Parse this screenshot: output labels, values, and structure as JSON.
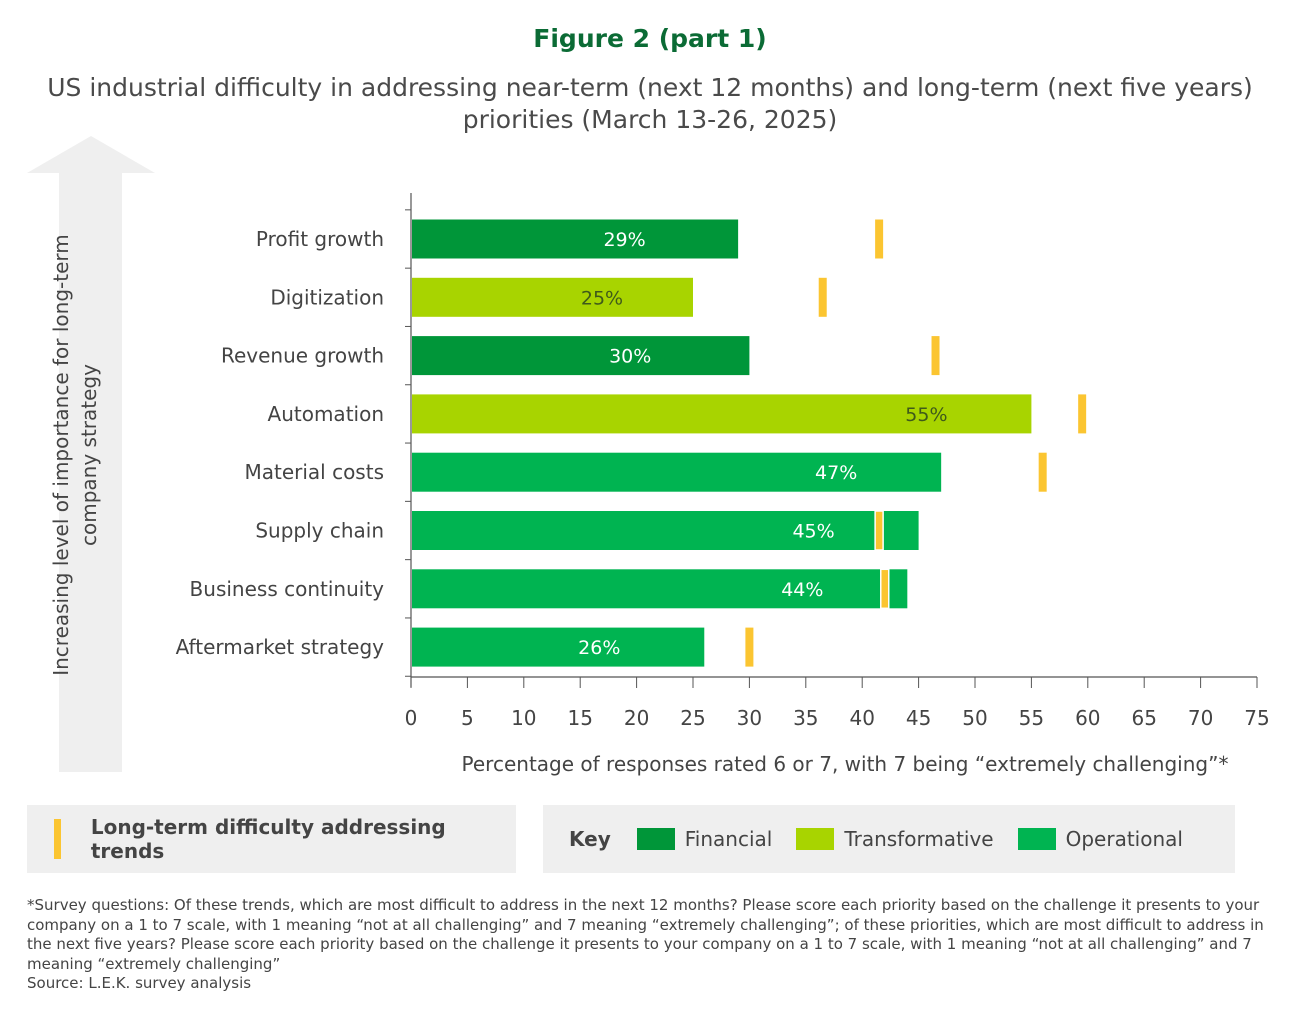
{
  "title": "Figure 2 (part 1)",
  "subtitle": "US industrial difficulty in addressing near-term (next 12 months) and long-term (next five years) priorities (March 13-26, 2025)",
  "arrow_label": "Increasing level of importance for long-term company strategy",
  "chart_data": {
    "type": "bar",
    "orientation": "horizontal",
    "title": "US industrial difficulty in addressing near-term (next 12 months) and long-term (next five years) priorities (March 13-26, 2025)",
    "xlabel": "Percentage of responses rated 6 or 7, with 7 being “extremely challenging”*",
    "ylabel": "Increasing level of importance for long-term company strategy",
    "xlim": [
      0,
      75
    ],
    "xticks": [
      "0",
      "5",
      "10",
      "15",
      "20",
      "25",
      "30",
      "35",
      "40",
      "45",
      "50",
      "55",
      "60",
      "65",
      "70",
      "75"
    ],
    "grid": false,
    "categories": [
      "Profit growth",
      "Digitization",
      "Revenue growth",
      "Automation",
      "Material costs",
      "Supply chain",
      "Business continuity",
      "Aftermarket strategy"
    ],
    "groups": [
      "Financial",
      "Transformative",
      "Financial",
      "Transformative",
      "Operational",
      "Operational",
      "Operational",
      "Operational"
    ],
    "series": [
      {
        "name": "Near-term",
        "values": [
          29,
          25,
          30,
          55,
          47,
          45,
          44,
          26
        ],
        "labels": [
          "29%",
          "25%",
          "30%",
          "55%",
          "47%",
          "45%",
          "44%",
          "26%"
        ]
      },
      {
        "name": "Long-term difficulty addressing trends",
        "values": [
          41.5,
          36.5,
          46.5,
          59.5,
          56,
          41.5,
          42,
          30
        ]
      }
    ],
    "colors": {
      "Financial": "#009639",
      "Transformative": "#a8d400",
      "Operational": "#00b451",
      "long_term": "#fbc531"
    }
  },
  "legend": {
    "long_term_label": "Long-term difficulty addressing trends",
    "key_label": "Key",
    "items": [
      {
        "label": "Financial",
        "color": "#009639"
      },
      {
        "label": "Transformative",
        "color": "#a8d400"
      },
      {
        "label": "Operational",
        "color": "#00b451"
      }
    ]
  },
  "footnote": "*Survey questions: Of these trends, which are most difficult to address in the next 12 months? Please score each priority based on the challenge it presents to your company on a 1 to 7 scale, with 1 meaning “not at all challenging” and 7 meaning “extremely challenging”; of these priorities, which are most difficult to address in the next five years? Please score each priority based on the challenge it presents to your company on a 1 to 7 scale, with 1 meaning “not at all challenging” and 7 meaning “extremely challenging”",
  "source": "Source: L.E.K. survey analysis"
}
